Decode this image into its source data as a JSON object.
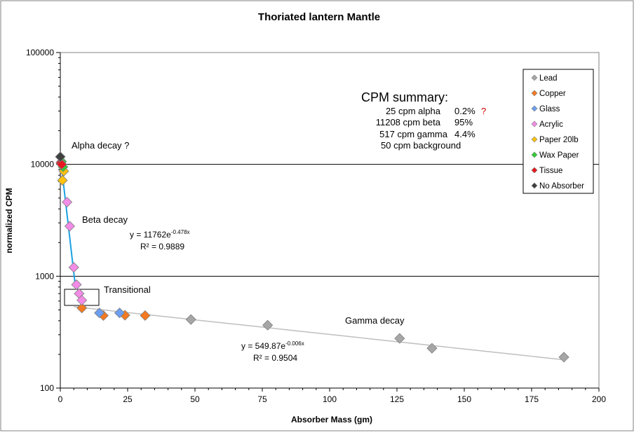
{
  "chart_data": {
    "type": "scatter",
    "title": "Thoriated lantern Mantle",
    "xlabel": "Absorber Mass (gm)",
    "ylabel": "normalized CPM",
    "xlim": [
      0,
      200
    ],
    "ylim": [
      100,
      100000
    ],
    "y_scale": "log",
    "x_ticks": [
      "0",
      "25",
      "50",
      "75",
      "100",
      "125",
      "150",
      "175",
      "200"
    ],
    "y_ticks": [
      "100",
      "1000",
      "10000",
      "100000"
    ],
    "grid": "major horizontal at 1000 and 10000",
    "legend_position": "top-right",
    "series": [
      {
        "name": "Lead",
        "color": "#a6a6a6",
        "points": [
          [
            48.5,
            410
          ],
          [
            77,
            365
          ],
          [
            126,
            278
          ],
          [
            138,
            227
          ],
          [
            187,
            189
          ]
        ]
      },
      {
        "name": "Copper",
        "color": "#f47920",
        "points": [
          [
            8,
            520
          ],
          [
            16,
            445
          ],
          [
            24,
            448
          ],
          [
            31.5,
            445
          ]
        ]
      },
      {
        "name": "Glass",
        "color": "#6d9ef0",
        "points": [
          [
            14.5,
            470
          ],
          [
            22,
            470
          ]
        ]
      },
      {
        "name": "Acrylic",
        "color": "#f28ce6",
        "points": [
          [
            2.5,
            4600
          ],
          [
            3.5,
            2800
          ],
          [
            5,
            1200
          ],
          [
            6,
            840
          ],
          [
            7,
            700
          ],
          [
            8,
            610
          ]
        ]
      },
      {
        "name": "Paper 20lb",
        "color": "#ffc20e",
        "points": [
          [
            0.8,
            7200
          ],
          [
            1.3,
            8700
          ]
        ]
      },
      {
        "name": "Wax Paper",
        "color": "#33cc33",
        "points": [
          [
            0.5,
            10600
          ],
          [
            1,
            9500
          ]
        ]
      },
      {
        "name": "Tissue",
        "color": "#e8171d",
        "points": [
          [
            0.2,
            10300
          ],
          [
            0.5,
            10000
          ]
        ]
      },
      {
        "name": "No Absorber",
        "color": "#404040",
        "points": [
          [
            0,
            11700
          ]
        ]
      }
    ],
    "trendlines": [
      {
        "equation": "y = 11762e",
        "exponent": "-0.478x",
        "r2": "R² = 0.9889",
        "color": "#1ba1e2",
        "a": 11762,
        "b": -0.478,
        "x_range": [
          0,
          5.5
        ]
      },
      {
        "equation": "y = 549.87e",
        "exponent": "-0.006x",
        "r2": "R² = 0.9504",
        "color": "#bfbfbf",
        "a": 549.87,
        "b": -0.006,
        "x_range": [
          5,
          187
        ]
      }
    ],
    "annotations": {
      "alpha": "Alpha decay ?",
      "beta": "Beta decay",
      "transitional": "Transitional",
      "gamma": "Gamma  decay"
    },
    "summary": {
      "title": "CPM summary:",
      "rows": [
        {
          "count": "25 cpm alpha",
          "pct": "0.2%",
          "flag": "?"
        },
        {
          "count": "11208 cpm beta",
          "pct": "95%",
          "flag": ""
        },
        {
          "count": "517 cpm gamma",
          "pct": "4.4%",
          "flag": ""
        },
        {
          "count": "50 cpm background",
          "pct": "",
          "flag": ""
        }
      ]
    }
  }
}
